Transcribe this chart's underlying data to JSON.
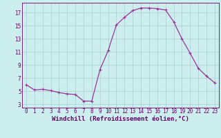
{
  "x": [
    0,
    1,
    2,
    3,
    4,
    5,
    6,
    7,
    8,
    9,
    10,
    11,
    12,
    13,
    14,
    15,
    16,
    17,
    18,
    19,
    20,
    21,
    22,
    23
  ],
  "y": [
    6.0,
    5.2,
    5.3,
    5.1,
    4.8,
    4.6,
    4.5,
    3.5,
    3.5,
    8.3,
    11.2,
    15.1,
    16.3,
    17.3,
    17.7,
    17.7,
    17.6,
    17.4,
    15.6,
    13.0,
    10.8,
    8.5,
    7.3,
    6.3
  ],
  "line_color": "#993399",
  "marker": "+",
  "marker_size": 3,
  "marker_linewidth": 0.8,
  "bg_color": "#cceeee",
  "grid_color": "#aacccc",
  "axis_color": "#660066",
  "xlabel": "Windchill (Refroidissement éolien,°C)",
  "ylabel": "",
  "xlim": [
    -0.5,
    23.5
  ],
  "ylim": [
    2.5,
    18.5
  ],
  "yticks": [
    3,
    5,
    7,
    9,
    11,
    13,
    15,
    17
  ],
  "xticks": [
    0,
    1,
    2,
    3,
    4,
    5,
    6,
    7,
    8,
    9,
    10,
    11,
    12,
    13,
    14,
    15,
    16,
    17,
    18,
    19,
    20,
    21,
    22,
    23
  ],
  "tick_fontsize": 5.5,
  "xlabel_fontsize": 6.5,
  "linewidth": 0.9
}
